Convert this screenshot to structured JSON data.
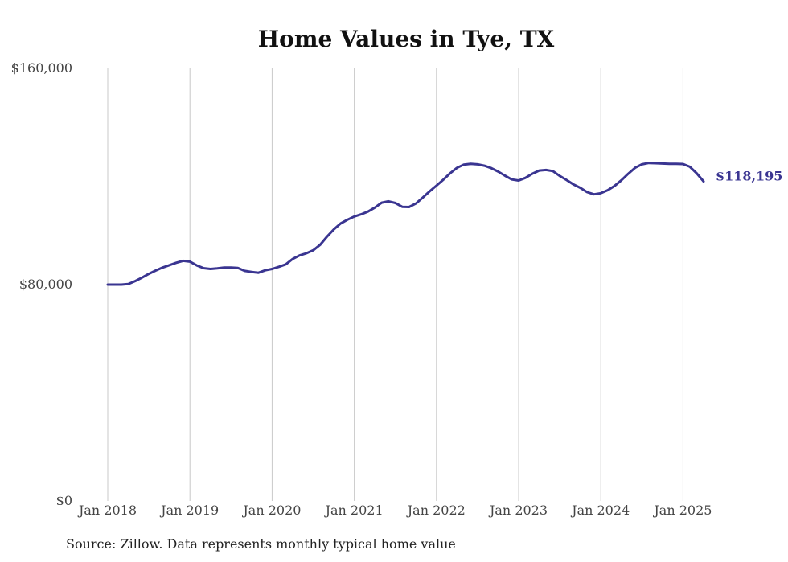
{
  "chart_data": {
    "type": "line",
    "title": "Home Values in Tye, TX",
    "xlabel": "",
    "ylabel": "",
    "x_tick_labels": [
      "Jan 2018",
      "Jan 2019",
      "Jan 2020",
      "Jan 2021",
      "Jan 2022",
      "Jan 2023",
      "Jan 2024",
      "Jan 2025"
    ],
    "y_tick_labels": [
      "$0",
      "$80,000",
      "$160,000"
    ],
    "y_ticks": [
      0,
      80000,
      160000
    ],
    "ylim": [
      0,
      160000
    ],
    "xlim": [
      "2018-01",
      "2025-04"
    ],
    "grid": "vertical",
    "line_color": "#3a3591",
    "end_label": "$118,195",
    "series": [
      {
        "x": [
          "2018-01",
          "2018-02",
          "2018-03",
          "2018-04",
          "2018-05",
          "2018-06",
          "2018-07",
          "2018-08",
          "2018-09",
          "2018-10",
          "2018-11",
          "2018-12",
          "2019-01",
          "2019-02",
          "2019-03",
          "2019-04",
          "2019-05",
          "2019-06",
          "2019-07",
          "2019-08",
          "2019-09",
          "2019-10",
          "2019-11",
          "2019-12",
          "2020-01",
          "2020-02",
          "2020-03",
          "2020-04",
          "2020-05",
          "2020-06",
          "2020-07",
          "2020-08",
          "2020-09",
          "2020-10",
          "2020-11",
          "2020-12",
          "2021-01",
          "2021-02",
          "2021-03",
          "2021-04",
          "2021-05",
          "2021-06",
          "2021-07",
          "2021-08",
          "2021-09",
          "2021-10",
          "2021-11",
          "2021-12",
          "2022-01",
          "2022-02",
          "2022-03",
          "2022-04",
          "2022-05",
          "2022-06",
          "2022-07",
          "2022-08",
          "2022-09",
          "2022-10",
          "2022-11",
          "2022-12",
          "2023-01",
          "2023-02",
          "2023-03",
          "2023-04",
          "2023-05",
          "2023-06",
          "2023-07",
          "2023-08",
          "2023-09",
          "2023-10",
          "2023-11",
          "2023-12",
          "2024-01",
          "2024-02",
          "2024-03",
          "2024-04",
          "2024-05",
          "2024-06",
          "2024-07",
          "2024-08",
          "2024-09",
          "2024-10",
          "2024-11",
          "2024-12",
          "2025-01",
          "2025-02",
          "2025-03",
          "2025-04"
        ],
        "values": [
          80000,
          80000,
          80000,
          80200,
          81300,
          82600,
          84000,
          85200,
          86300,
          87200,
          88100,
          88800,
          88500,
          87100,
          86100,
          85800,
          86000,
          86300,
          86300,
          86200,
          85100,
          84700,
          84400,
          85300,
          85800,
          86600,
          87500,
          89500,
          90800,
          91600,
          92700,
          94700,
          97700,
          100400,
          102600,
          104000,
          105200,
          106000,
          107000,
          108500,
          110300,
          110800,
          110200,
          108800,
          108700,
          110000,
          112200,
          114500,
          116600,
          118800,
          121200,
          123200,
          124400,
          124700,
          124500,
          124000,
          123100,
          121800,
          120300,
          118900,
          118500,
          119500,
          121000,
          122200,
          122400,
          122000,
          120200,
          118700,
          117100,
          115800,
          114200,
          113400,
          113800,
          114900,
          116500,
          118600,
          121000,
          123200,
          124500,
          125000,
          124900,
          124800,
          124700,
          124700,
          124600,
          123600,
          121200,
          118195
        ]
      }
    ]
  },
  "footer": {
    "source": "Source: Zillow. Data represents monthly typical home value"
  }
}
